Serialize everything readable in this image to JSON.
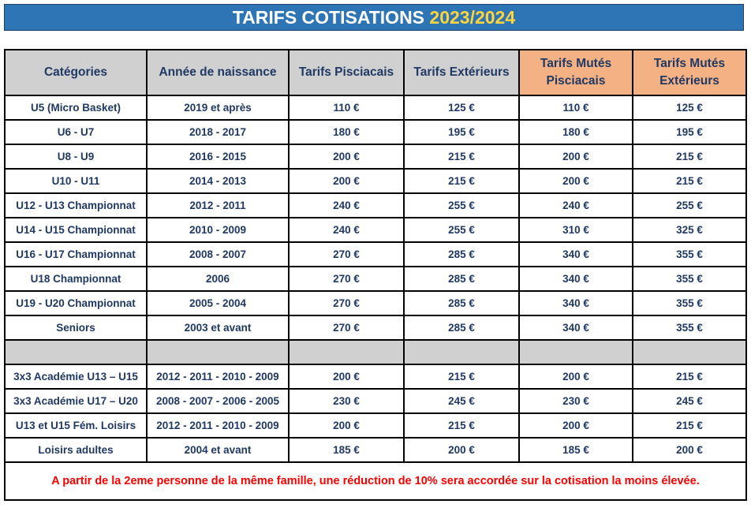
{
  "title": {
    "main": "TARIFS COTISATIONS",
    "year": "2023/2024"
  },
  "columns": [
    "Catégories",
    "Année de naissance",
    "Tarifs Pisciacais",
    "Tarifs Extérieurs",
    "Tarifs Mutés Pisciacais",
    "Tarifs Mutés Extérieurs"
  ],
  "rows": [
    [
      "U5 (Micro Basket)",
      "2019 et après",
      "110 €",
      "125 €",
      "110 €",
      "125 €"
    ],
    [
      "U6 - U7",
      "2018 - 2017",
      "180 €",
      "195 €",
      "180 €",
      "195 €"
    ],
    [
      "U8 - U9",
      "2016 - 2015",
      "200 €",
      "215 €",
      "200 €",
      "215 €"
    ],
    [
      "U10 - U11",
      "2014 - 2013",
      "200 €",
      "215 €",
      "200 €",
      "215 €"
    ],
    [
      "U12 - U13 Championnat",
      "2012 - 2011",
      "240 €",
      "255 €",
      "240 €",
      "255 €"
    ],
    [
      "U14 - U15 Championnat",
      "2010 - 2009",
      "240 €",
      "255 €",
      "310 €",
      "325 €"
    ],
    [
      "U16 - U17 Championnat",
      "2008 - 2007",
      "270 €",
      "285 €",
      "340 €",
      "355 €"
    ],
    [
      "U18 Championnat",
      "2006",
      "270 €",
      "285 €",
      "340 €",
      "355 €"
    ],
    [
      "U19 - U20 Championnat",
      "2005 - 2004",
      "270 €",
      "285 €",
      "340 €",
      "355 €"
    ],
    [
      "Seniors",
      "2003 et avant",
      "270 €",
      "285 €",
      "340 €",
      "355 €"
    ]
  ],
  "rows2": [
    [
      "3x3 Académie U13 – U15",
      "2012 - 2011 - 2010 - 2009",
      "200 €",
      "215 €",
      "200 €",
      "215 €"
    ],
    [
      "3x3 Académie U17 – U20",
      "2008 - 2007 - 2006 - 2005",
      "230 €",
      "245 €",
      "230 €",
      "245 €"
    ],
    [
      "U13 et U15 Fém. Loisirs",
      "2012 - 2011 - 2010 - 2009",
      "200 €",
      "215 €",
      "200 €",
      "215 €"
    ],
    [
      "Loisirs adultes",
      "2004 et avant",
      "185 €",
      "200 €",
      "185 €",
      "200 €"
    ]
  ],
  "note": "A partir de la 2eme personne de la même famille, une réduction de 10% sera accordée sur la cotisation la moins élevée.",
  "colors": {
    "title_bg": "#2e75b6",
    "title_year": "#ffd43b",
    "header_bg": "#d0d0d0",
    "header_accent": "#f4b183",
    "cell_text": "#1f3864",
    "note_text": "#ff0000"
  }
}
